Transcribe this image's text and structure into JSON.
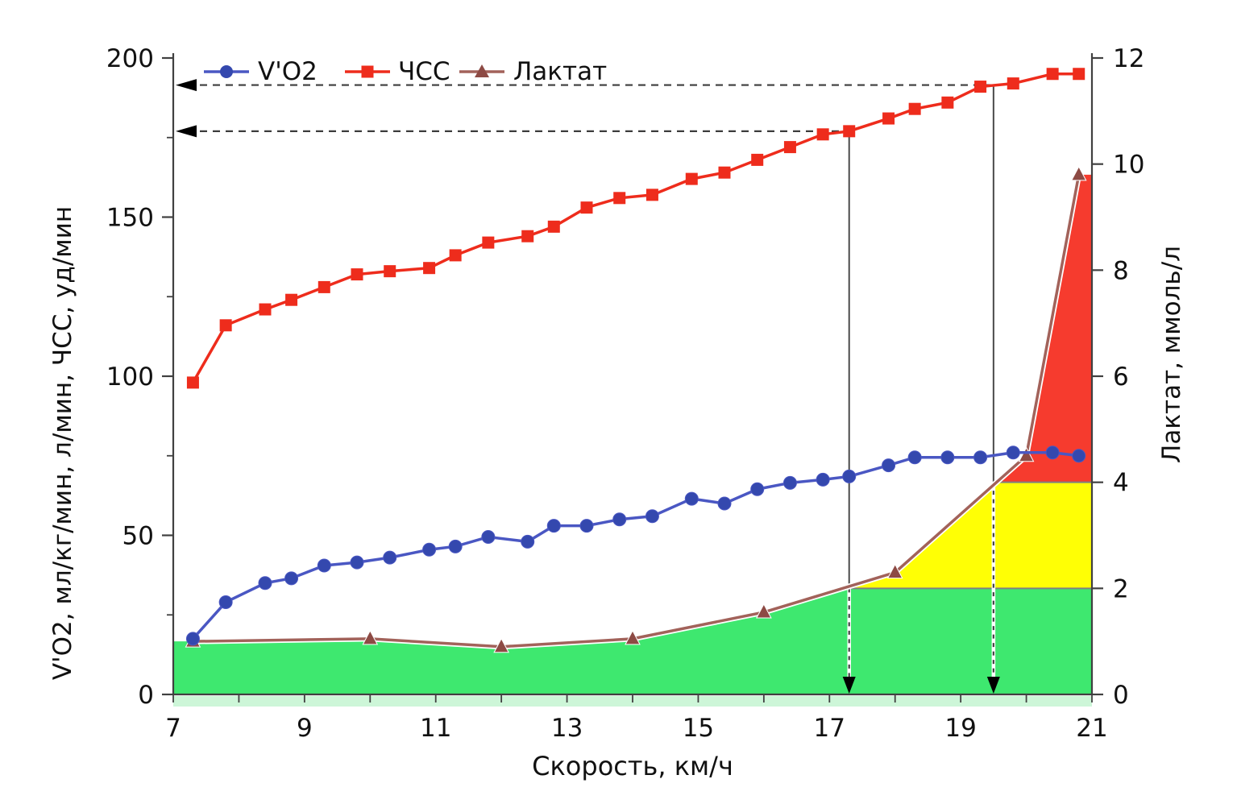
{
  "chart_data": {
    "type": "line",
    "title": "",
    "xlabel": "Скорость, км/ч",
    "ylabel_left": "V'O2, мл/кг/мин, л/мин, ЧСС, уд/мин",
    "ylabel_right": "Лактат, ммоль/л",
    "x_range": [
      7,
      21
    ],
    "x_ticks": [
      7,
      9,
      11,
      13,
      15,
      17,
      19,
      21
    ],
    "x_minor_ticks": [
      7,
      8,
      9,
      10,
      11,
      12,
      13,
      14,
      15,
      16,
      17,
      18,
      19,
      20,
      21
    ],
    "yleft_range": [
      0,
      200
    ],
    "yleft_ticks": [
      0,
      50,
      100,
      150,
      200
    ],
    "yleft_minor_ticks": [
      25,
      75,
      125,
      175
    ],
    "yright_range": [
      0,
      12
    ],
    "yright_ticks": [
      0,
      2,
      4,
      6,
      8,
      10,
      12
    ],
    "grid": "off",
    "legend_position": "top-left",
    "series": [
      {
        "name": "V'O2",
        "axis": "left",
        "marker": "circle",
        "line_color": "#4a57c3",
        "marker_color": "#3448ae",
        "x": [
          7.3,
          7.8,
          8.4,
          8.8,
          9.3,
          9.8,
          10.3,
          10.9,
          11.3,
          11.8,
          12.4,
          12.8,
          13.3,
          13.8,
          14.3,
          14.9,
          15.4,
          15.9,
          16.4,
          16.9,
          17.3,
          17.9,
          18.3,
          18.8,
          19.3,
          19.8,
          20.4,
          20.8
        ],
        "y": [
          17.5,
          29,
          35,
          36.5,
          40.5,
          41.5,
          43,
          45.5,
          46.5,
          49.5,
          48,
          53,
          53,
          55,
          56,
          61.5,
          60,
          64.5,
          66.5,
          67.5,
          68.5,
          72,
          74.5,
          74.5,
          74.5,
          76,
          76,
          75
        ]
      },
      {
        "name": "ЧСС",
        "axis": "left",
        "marker": "square",
        "line_color": "#ee2c1c",
        "marker_color": "#ee2c1c",
        "x": [
          7.3,
          7.8,
          8.4,
          8.8,
          9.3,
          9.8,
          10.3,
          10.9,
          11.3,
          11.8,
          12.4,
          12.8,
          13.3,
          13.8,
          14.3,
          14.9,
          15.4,
          15.9,
          16.4,
          16.9,
          17.3,
          17.9,
          18.3,
          18.8,
          19.3,
          19.8,
          20.4,
          20.8
        ],
        "y": [
          98,
          116,
          121,
          124,
          128,
          132,
          133,
          134,
          138,
          142,
          144,
          147,
          153,
          156,
          157,
          162,
          164,
          168,
          172,
          176,
          177,
          181,
          184,
          186,
          191,
          192,
          195,
          195
        ]
      },
      {
        "name": "Лактат",
        "axis": "right",
        "marker": "triangle",
        "line_color": "#a2625a",
        "marker_color": "#8d4a44",
        "x": [
          7.3,
          10,
          12,
          14,
          16,
          18,
          20,
          20.8
        ],
        "y": [
          1.0,
          1.05,
          0.9,
          1.05,
          1.55,
          2.3,
          4.5,
          9.8
        ]
      }
    ],
    "zones": {
      "green": {
        "range": [
          0,
          2
        ],
        "color": "#3ee86f"
      },
      "yellow": {
        "range": [
          2,
          4
        ],
        "color": "#ffff05"
      },
      "red": {
        "range": [
          4,
          12
        ],
        "color": "#f63b2e"
      }
    },
    "zone_boundaries": [
      {
        "level": 2,
        "from_speed": 17.2
      },
      {
        "level": 4,
        "from_speed": 19.55
      }
    ],
    "thresholds": [
      {
        "speed": 17.3,
        "hr": 177,
        "lactate": 2.0
      },
      {
        "speed": 19.5,
        "hr": 191.5,
        "lactate": 4.0
      }
    ]
  }
}
